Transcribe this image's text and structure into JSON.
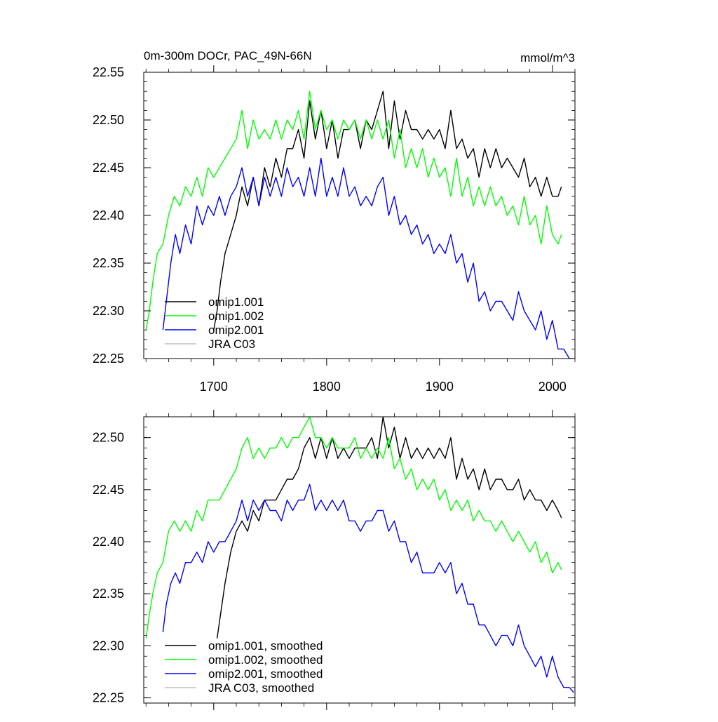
{
  "chart_data": [
    {
      "type": "line",
      "title": "0m-300m DOCr, PAC_49N-66N",
      "units": "mmol/m^3",
      "xlabel": "",
      "ylabel": "",
      "xlim": [
        1638,
        2020
      ],
      "ylim": [
        22.25,
        22.55
      ],
      "xticks": [
        1700,
        1800,
        1900,
        2000
      ],
      "xtick_labels": [
        "1700",
        "1800",
        "1900",
        "2000"
      ],
      "yticks": [
        22.25,
        22.3,
        22.35,
        22.4,
        22.45,
        22.5,
        22.55
      ],
      "ytick_labels": [
        "22.25",
        "22.30",
        "22.35",
        "22.40",
        "22.45",
        "22.50",
        "22.55"
      ],
      "grid": false,
      "legend": "bottom-left",
      "series": [
        {
          "name": "omip1.001",
          "color": "#000000",
          "x": [
            1700,
            1703,
            1706,
            1710,
            1715,
            1720,
            1725,
            1730,
            1735,
            1740,
            1745,
            1750,
            1755,
            1760,
            1765,
            1770,
            1775,
            1780,
            1785,
            1790,
            1795,
            1800,
            1805,
            1810,
            1815,
            1820,
            1825,
            1830,
            1835,
            1840,
            1845,
            1850,
            1855,
            1860,
            1865,
            1870,
            1875,
            1880,
            1885,
            1890,
            1895,
            1900,
            1905,
            1910,
            1915,
            1920,
            1925,
            1930,
            1935,
            1940,
            1945,
            1950,
            1955,
            1960,
            1965,
            1970,
            1975,
            1980,
            1985,
            1990,
            1995,
            2000,
            2005,
            2008
          ],
          "values": [
            22.28,
            22.3,
            22.33,
            22.36,
            22.38,
            22.4,
            22.43,
            22.41,
            22.44,
            22.41,
            22.45,
            22.43,
            22.46,
            22.44,
            22.47,
            22.47,
            22.49,
            22.46,
            22.52,
            22.48,
            22.51,
            22.47,
            22.5,
            22.46,
            22.49,
            22.49,
            22.5,
            22.47,
            22.5,
            22.49,
            22.51,
            22.53,
            22.47,
            22.52,
            22.48,
            22.51,
            22.49,
            22.49,
            22.48,
            22.49,
            22.48,
            22.49,
            22.47,
            22.51,
            22.47,
            22.48,
            22.46,
            22.47,
            22.44,
            22.47,
            22.45,
            22.47,
            22.45,
            22.46,
            22.45,
            22.44,
            22.46,
            22.43,
            22.44,
            22.42,
            22.44,
            22.42,
            22.42,
            22.43
          ]
        },
        {
          "name": "omip1.002",
          "color": "#00ff00",
          "x": [
            1640,
            1643,
            1646,
            1650,
            1655,
            1660,
            1665,
            1670,
            1675,
            1680,
            1685,
            1690,
            1695,
            1700,
            1705,
            1710,
            1715,
            1720,
            1725,
            1730,
            1735,
            1740,
            1745,
            1750,
            1755,
            1760,
            1765,
            1770,
            1775,
            1780,
            1785,
            1790,
            1795,
            1800,
            1805,
            1810,
            1815,
            1820,
            1825,
            1830,
            1835,
            1840,
            1845,
            1850,
            1855,
            1860,
            1865,
            1870,
            1875,
            1880,
            1885,
            1890,
            1895,
            1900,
            1905,
            1910,
            1915,
            1920,
            1925,
            1930,
            1935,
            1940,
            1945,
            1950,
            1955,
            1960,
            1965,
            1970,
            1975,
            1980,
            1985,
            1990,
            1995,
            2000,
            2005,
            2008
          ],
          "values": [
            22.28,
            22.3,
            22.33,
            22.36,
            22.37,
            22.4,
            22.42,
            22.41,
            22.43,
            22.42,
            22.44,
            22.42,
            22.45,
            22.44,
            22.45,
            22.46,
            22.47,
            22.48,
            22.51,
            22.47,
            22.5,
            22.48,
            22.49,
            22.48,
            22.5,
            22.48,
            22.5,
            22.49,
            22.51,
            22.48,
            22.53,
            22.49,
            22.51,
            22.49,
            22.5,
            22.48,
            22.5,
            22.49,
            22.5,
            22.48,
            22.5,
            22.48,
            22.5,
            22.48,
            22.5,
            22.46,
            22.49,
            22.45,
            22.47,
            22.45,
            22.47,
            22.44,
            22.46,
            22.44,
            22.45,
            22.42,
            22.46,
            22.42,
            22.44,
            22.41,
            22.43,
            22.41,
            22.43,
            22.41,
            22.42,
            22.4,
            22.41,
            22.39,
            22.42,
            22.39,
            22.4,
            22.37,
            22.41,
            22.38,
            22.37,
            22.38
          ]
        },
        {
          "name": "omip2.001",
          "color": "#0000ff",
          "x": [
            1655,
            1658,
            1662,
            1666,
            1670,
            1675,
            1680,
            1685,
            1690,
            1695,
            1700,
            1705,
            1710,
            1715,
            1720,
            1725,
            1730,
            1735,
            1740,
            1745,
            1750,
            1755,
            1760,
            1765,
            1770,
            1775,
            1780,
            1785,
            1790,
            1795,
            1800,
            1805,
            1810,
            1815,
            1820,
            1825,
            1830,
            1835,
            1840,
            1845,
            1850,
            1855,
            1860,
            1865,
            1870,
            1875,
            1880,
            1885,
            1890,
            1895,
            1900,
            1905,
            1910,
            1915,
            1920,
            1925,
            1930,
            1935,
            1940,
            1945,
            1950,
            1955,
            1960,
            1965,
            1970,
            1975,
            1980,
            1985,
            1990,
            1995,
            2000,
            2005,
            2010,
            2015,
            2019
          ],
          "values": [
            22.28,
            22.31,
            22.35,
            22.38,
            22.36,
            22.39,
            22.37,
            22.41,
            22.39,
            22.41,
            22.4,
            22.42,
            22.4,
            22.42,
            22.43,
            22.45,
            22.42,
            22.44,
            22.41,
            22.44,
            22.42,
            22.44,
            22.42,
            22.45,
            22.43,
            22.44,
            22.42,
            22.45,
            22.42,
            22.46,
            22.42,
            22.44,
            22.42,
            22.45,
            22.42,
            22.43,
            22.41,
            22.42,
            22.41,
            22.43,
            22.44,
            22.4,
            22.42,
            22.39,
            22.4,
            22.38,
            22.39,
            22.37,
            22.38,
            22.36,
            22.37,
            22.36,
            22.38,
            22.35,
            22.36,
            22.33,
            22.35,
            22.31,
            22.32,
            22.3,
            22.31,
            22.31,
            22.3,
            22.29,
            22.32,
            22.3,
            22.29,
            22.28,
            22.3,
            22.27,
            22.29,
            22.26,
            22.26,
            22.25,
            22.25
          ]
        },
        {
          "name": "JRA C03",
          "color": "#c0c0c0",
          "x": [],
          "values": []
        }
      ]
    },
    {
      "type": "line",
      "title": "",
      "xlabel": "",
      "ylabel": "",
      "xlim": [
        1638,
        2020
      ],
      "ylim": [
        22.245,
        22.52
      ],
      "xticks": [
        1700,
        1800,
        1900,
        2000
      ],
      "yticks": [
        22.25,
        22.3,
        22.35,
        22.4,
        22.45,
        22.5
      ],
      "ytick_labels": [
        "22.25",
        "22.30",
        "22.35",
        "22.40",
        "22.45",
        "22.50"
      ],
      "grid": false,
      "legend": "bottom-left",
      "series": [
        {
          "name": "omip1.001, smoothed",
          "color": "#000000",
          "x": [
            1703,
            1706,
            1710,
            1715,
            1720,
            1725,
            1730,
            1735,
            1740,
            1745,
            1750,
            1755,
            1760,
            1765,
            1770,
            1775,
            1780,
            1785,
            1790,
            1795,
            1800,
            1805,
            1810,
            1815,
            1820,
            1825,
            1830,
            1835,
            1840,
            1845,
            1850,
            1855,
            1860,
            1865,
            1870,
            1875,
            1880,
            1885,
            1890,
            1895,
            1900,
            1905,
            1910,
            1915,
            1920,
            1925,
            1930,
            1935,
            1940,
            1945,
            1950,
            1955,
            1960,
            1965,
            1970,
            1975,
            1980,
            1985,
            1990,
            1995,
            2000,
            2005,
            2008
          ],
          "values": [
            22.307,
            22.33,
            22.36,
            22.39,
            22.41,
            22.42,
            22.41,
            22.43,
            22.42,
            22.44,
            22.44,
            22.44,
            22.45,
            22.46,
            22.46,
            22.47,
            22.49,
            22.5,
            22.48,
            22.5,
            22.48,
            22.5,
            22.48,
            22.49,
            22.48,
            22.49,
            22.49,
            22.49,
            22.5,
            22.48,
            22.52,
            22.49,
            22.51,
            22.48,
            22.5,
            22.48,
            22.49,
            22.48,
            22.49,
            22.48,
            22.49,
            22.48,
            22.5,
            22.46,
            22.48,
            22.46,
            22.47,
            22.45,
            22.47,
            22.45,
            22.46,
            22.46,
            22.45,
            22.45,
            22.46,
            22.44,
            22.45,
            22.44,
            22.44,
            22.43,
            22.44,
            22.43,
            22.423
          ]
        },
        {
          "name": "omip1.002, smoothed",
          "color": "#00ff00",
          "x": [
            1640,
            1643,
            1646,
            1650,
            1655,
            1660,
            1665,
            1670,
            1675,
            1680,
            1685,
            1690,
            1695,
            1700,
            1705,
            1710,
            1715,
            1720,
            1725,
            1730,
            1735,
            1740,
            1745,
            1750,
            1755,
            1760,
            1765,
            1770,
            1775,
            1780,
            1785,
            1790,
            1795,
            1800,
            1805,
            1810,
            1815,
            1820,
            1825,
            1830,
            1835,
            1840,
            1845,
            1850,
            1855,
            1860,
            1865,
            1870,
            1875,
            1880,
            1885,
            1890,
            1895,
            1900,
            1905,
            1910,
            1915,
            1920,
            1925,
            1930,
            1935,
            1940,
            1945,
            1950,
            1955,
            1960,
            1965,
            1970,
            1975,
            1980,
            1985,
            1990,
            1995,
            2000,
            2005,
            2008
          ],
          "values": [
            22.307,
            22.33,
            22.35,
            22.37,
            22.38,
            22.41,
            22.42,
            22.41,
            22.42,
            22.41,
            22.43,
            22.42,
            22.44,
            22.44,
            22.44,
            22.45,
            22.46,
            22.47,
            22.49,
            22.5,
            22.48,
            22.49,
            22.48,
            22.49,
            22.49,
            22.5,
            22.49,
            22.5,
            22.5,
            22.51,
            22.52,
            22.5,
            22.5,
            22.49,
            22.5,
            22.49,
            22.49,
            22.49,
            22.5,
            22.48,
            22.49,
            22.48,
            22.49,
            22.48,
            22.5,
            22.47,
            22.48,
            22.46,
            22.47,
            22.45,
            22.46,
            22.45,
            22.46,
            22.44,
            22.45,
            22.43,
            22.44,
            22.43,
            22.44,
            22.42,
            22.43,
            22.42,
            22.42,
            22.41,
            22.42,
            22.41,
            22.4,
            22.41,
            22.4,
            22.39,
            22.4,
            22.38,
            22.39,
            22.37,
            22.38,
            22.373
          ]
        },
        {
          "name": "omip2.001, smoothed",
          "color": "#0000ff",
          "x": [
            1655,
            1658,
            1662,
            1666,
            1670,
            1675,
            1680,
            1685,
            1690,
            1695,
            1700,
            1705,
            1710,
            1715,
            1720,
            1725,
            1730,
            1735,
            1740,
            1745,
            1750,
            1755,
            1760,
            1765,
            1770,
            1775,
            1780,
            1785,
            1790,
            1795,
            1800,
            1805,
            1810,
            1815,
            1820,
            1825,
            1830,
            1835,
            1840,
            1845,
            1850,
            1855,
            1860,
            1865,
            1870,
            1875,
            1880,
            1885,
            1890,
            1895,
            1900,
            1905,
            1910,
            1915,
            1920,
            1925,
            1930,
            1935,
            1940,
            1945,
            1950,
            1955,
            1960,
            1965,
            1970,
            1975,
            1980,
            1985,
            1990,
            1995,
            2000,
            2005,
            2010,
            2015,
            2019
          ],
          "values": [
            22.313,
            22.34,
            22.36,
            22.37,
            22.36,
            22.38,
            22.38,
            22.39,
            22.38,
            22.4,
            22.39,
            22.4,
            22.4,
            22.41,
            22.42,
            22.44,
            22.42,
            22.44,
            22.43,
            22.44,
            22.43,
            22.43,
            22.42,
            22.44,
            22.43,
            22.44,
            22.44,
            22.455,
            22.43,
            22.44,
            22.43,
            22.44,
            22.43,
            22.44,
            22.42,
            22.42,
            22.41,
            22.42,
            22.42,
            22.43,
            22.43,
            22.41,
            22.42,
            22.4,
            22.4,
            22.38,
            22.39,
            22.37,
            22.37,
            22.37,
            22.38,
            22.37,
            22.38,
            22.35,
            22.36,
            22.34,
            22.34,
            22.32,
            22.32,
            22.31,
            22.3,
            22.31,
            22.31,
            22.3,
            22.32,
            22.3,
            22.29,
            22.28,
            22.29,
            22.27,
            22.29,
            22.27,
            22.26,
            22.26,
            22.255
          ]
        },
        {
          "name": "JRA C03, smoothed",
          "color": "#c0c0c0",
          "x": [],
          "values": []
        }
      ]
    }
  ]
}
